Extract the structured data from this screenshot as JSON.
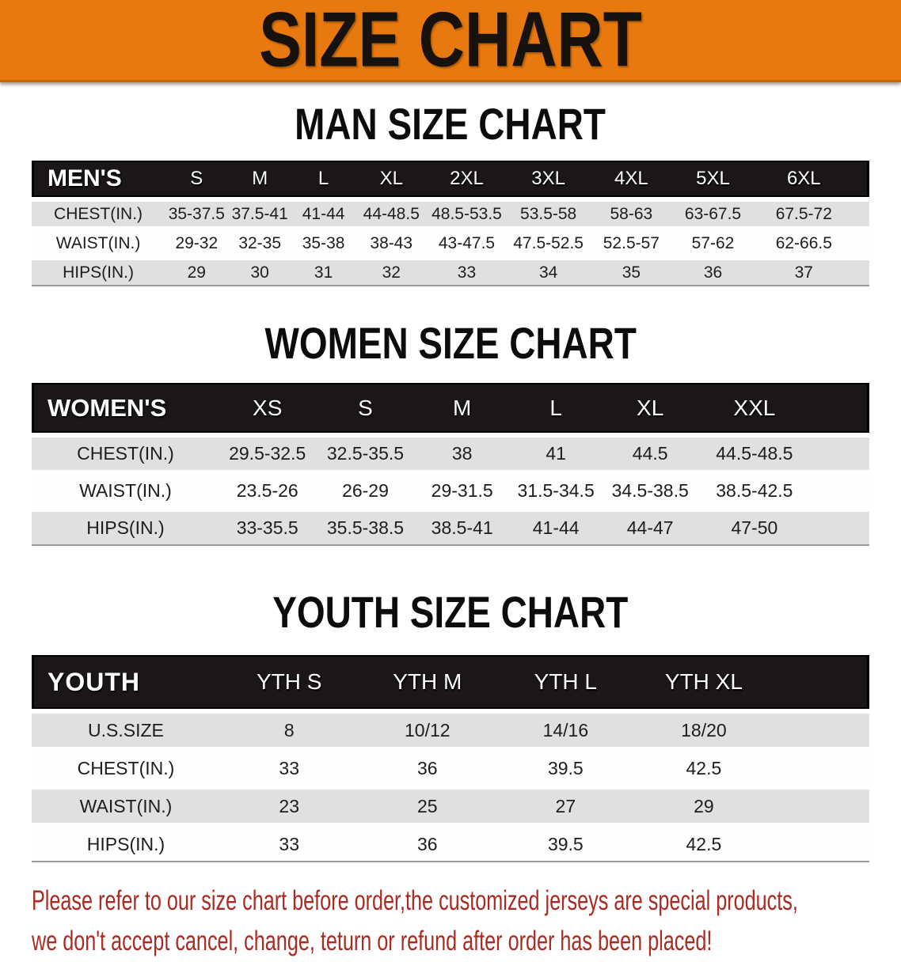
{
  "banner": {
    "title": "SIZE CHART"
  },
  "sections": [
    {
      "title": "MAN SIZE CHART",
      "header_label": "MEN'S",
      "columns": [
        "S",
        "M",
        "L",
        "XL",
        "2XL",
        "3XL",
        "4XL",
        "5XL",
        "6XL"
      ],
      "rows": [
        {
          "label": "CHEST(IN.)",
          "values": [
            "35-37.5",
            "37.5-41",
            "41-44",
            "44-48.5",
            "48.5-53.5",
            "53.5-58",
            "58-63",
            "63-67.5",
            "67.5-72"
          ]
        },
        {
          "label": "WAIST(IN.)",
          "values": [
            "29-32",
            "32-35",
            "35-38",
            "38-43",
            "43-47.5",
            "47.5-52.5",
            "52.5-57",
            "57-62",
            "62-66.5"
          ]
        },
        {
          "label": "HIPS(IN.)",
          "values": [
            "29",
            "30",
            "31",
            "32",
            "33",
            "34",
            "35",
            "36",
            "37"
          ]
        }
      ]
    },
    {
      "title": "WOMEN SIZE CHART",
      "header_label": "WOMEN'S",
      "columns": [
        "XS",
        "S",
        "M",
        "L",
        "XL",
        "XXL"
      ],
      "rows": [
        {
          "label": "CHEST(IN.)",
          "values": [
            "29.5-32.5",
            "32.5-35.5",
            "38",
            "41",
            "44.5",
            "44.5-48.5"
          ]
        },
        {
          "label": "WAIST(IN.)",
          "values": [
            "23.5-26",
            "26-29",
            "29-31.5",
            "31.5-34.5",
            "34.5-38.5",
            "38.5-42.5"
          ]
        },
        {
          "label": "HIPS(IN.)",
          "values": [
            "33-35.5",
            "35.5-38.5",
            "38.5-41",
            "41-44",
            "44-47",
            "47-50"
          ]
        }
      ]
    },
    {
      "title": "YOUTH SIZE CHART",
      "header_label": "YOUTH",
      "columns": [
        "YTH S",
        "YTH M",
        "YTH L",
        "YTH XL"
      ],
      "rows": [
        {
          "label": "U.S.SIZE",
          "values": [
            "8",
            "10/12",
            "14/16",
            "18/20"
          ]
        },
        {
          "label": "CHEST(IN.)",
          "values": [
            "33",
            "36",
            "39.5",
            "42.5"
          ]
        },
        {
          "label": "WAIST(IN.)",
          "values": [
            "23",
            "25",
            "27",
            "29"
          ]
        },
        {
          "label": "HIPS(IN.)",
          "values": [
            "33",
            "36",
            "39.5",
            "42.5"
          ]
        }
      ]
    }
  ],
  "disclaimer": {
    "line1": "Please refer to our size chart before order,the customized jerseys are special products,",
    "line2": "we don't accept cancel, change, teturn or refund after order has been placed!"
  },
  "colors": {
    "banner_bg": "#E8790F",
    "header_bar_bg": "#1B1717",
    "row_stripe_gray": "#E0E0E0",
    "disclaimer_red": "#A92B22"
  }
}
